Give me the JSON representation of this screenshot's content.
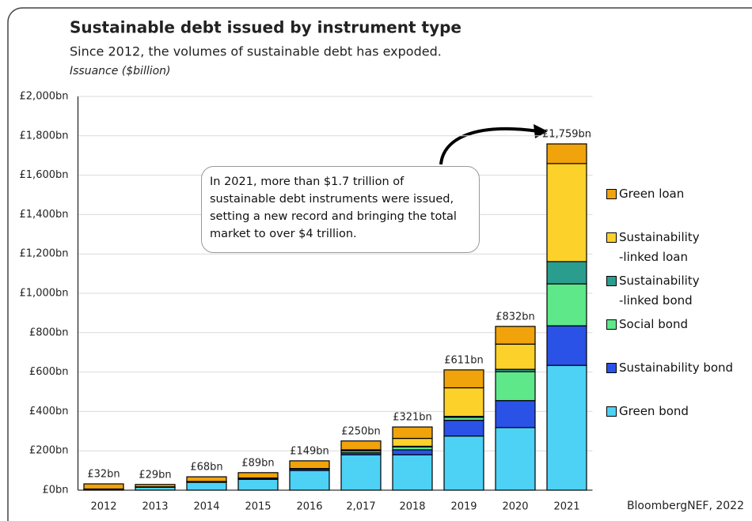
{
  "chart_data": {
    "type": "stacked_bar",
    "title": "Sustainable debt issued by instrument type",
    "subtitle": "Since 2012, the volumes of sustainable debt has expoded.",
    "y_label": "Issuance ($billion)",
    "source": "BloombergNEF, 2022",
    "annotation": "In 2021, more than $1.7 trillion of sustainable debt instruments were issued, setting a new record and bringing the total market to over $4 trillion.",
    "categories": [
      "2012",
      "2013",
      "2014",
      "2015",
      "2016",
      "2,017",
      "2018",
      "2019",
      "2020",
      "2021"
    ],
    "series": [
      {
        "name": "Green bond",
        "color": "#4dd2f5",
        "values": [
          5,
          15,
          40,
          55,
          100,
          180,
          180,
          275,
          318,
          634
        ]
      },
      {
        "name": "Sustainability bond",
        "color": "#2a52e6",
        "values": [
          1,
          1,
          3,
          5,
          8,
          10,
          25,
          80,
          137,
          201
        ]
      },
      {
        "name": "Social bond",
        "color": "#5ee88a",
        "values": [
          0,
          1,
          1,
          2,
          2,
          10,
          15,
          15,
          147,
          213
        ]
      },
      {
        "name": "Sustainability\n-linked bond",
        "color": "#2a9d8f",
        "values": [
          0,
          0,
          0,
          0,
          0,
          0,
          3,
          5,
          12,
          113
        ]
      },
      {
        "name": "Sustainability\n-linked loan",
        "color": "#fcd12a",
        "values": [
          0,
          0,
          0,
          0,
          0,
          5,
          40,
          145,
          128,
          498
        ]
      },
      {
        "name": "Green loan",
        "color": "#f0a30a",
        "values": [
          26,
          12,
          24,
          27,
          39,
          45,
          58,
          91,
          90,
          100
        ]
      }
    ],
    "totals": {
      "values": [
        32,
        29,
        68,
        89,
        149,
        250,
        321,
        611,
        832,
        1759
      ],
      "value_labels": [
        "£32bn",
        "£29bn",
        "£68bn",
        "£89bn",
        "£149bn",
        "£250bn",
        "£321bn",
        "£611bn",
        "£832bn",
        "£1,759bn"
      ]
    },
    "ylim": [
      0,
      2000
    ],
    "yticks": [
      {
        "value": 0,
        "label": "£0bn"
      },
      {
        "value": 200,
        "label": "£200bn"
      },
      {
        "value": 400,
        "label": "£400bn"
      },
      {
        "value": 600,
        "label": "£600bn"
      },
      {
        "value": 800,
        "label": "£800bn"
      },
      {
        "value": 1000,
        "label": "£1,000bn"
      },
      {
        "value": 1200,
        "label": "£1,200bn"
      },
      {
        "value": 1400,
        "label": "£1,400bn"
      },
      {
        "value": 1600,
        "label": "£1,600bn"
      },
      {
        "value": 1800,
        "label": "£1,800bn"
      },
      {
        "value": 2000,
        "label": "£2,000bn"
      }
    ],
    "grid": true,
    "legend": "right"
  }
}
